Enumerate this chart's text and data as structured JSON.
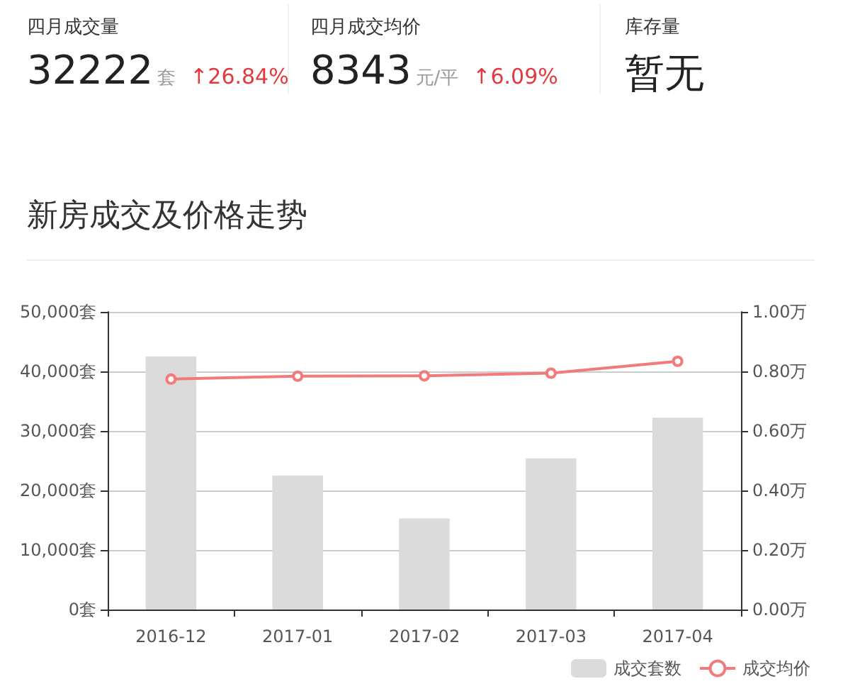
{
  "chart_data": [
    {
      "type": "other",
      "annotations": [
        "四月成交量",
        "32222",
        "套",
        "↑26.84%",
        "四月成交均价",
        "8343",
        "元/平",
        "↑6.09%",
        "库存量",
        "暂无"
      ]
    },
    {
      "type": "bar",
      "title": "新房成交及价格走势",
      "categories": [
        "2016-12",
        "2017-01",
        "2017-02",
        "2017-03",
        "2017-04"
      ],
      "series": [
        {
          "name": "成交套数",
          "type": "bar",
          "color": "#dbdbdb",
          "values": [
            42500,
            22500,
            15300,
            25400,
            32222
          ]
        },
        {
          "name": "成交均价",
          "type": "line",
          "axis": "y2",
          "color": "#f27a7a",
          "values": [
            0.774,
            0.784,
            0.785,
            0.794,
            0.834
          ]
        }
      ],
      "ylim": [
        0,
        50000
      ],
      "yticks": [
        {
          "value": 0,
          "label": "0套"
        },
        {
          "value": 10000,
          "label": "10,000套"
        },
        {
          "value": 20000,
          "label": "20,000套"
        },
        {
          "value": 30000,
          "label": "30,000套"
        },
        {
          "value": 40000,
          "label": "40,000套"
        },
        {
          "value": 50000,
          "label": "50,000套"
        }
      ],
      "y2lim": [
        0,
        1
      ],
      "y2ticks": [
        {
          "value": 0,
          "label": "0.00万"
        },
        {
          "value": 0.2,
          "label": "0.20万"
        },
        {
          "value": 0.4,
          "label": "0.40万"
        },
        {
          "value": 0.6,
          "label": "0.60万"
        },
        {
          "value": 0.8,
          "label": "0.80万"
        },
        {
          "value": 1,
          "label": "1.00万"
        }
      ],
      "grid": "y",
      "legend": "bottom right",
      "marker": "circle"
    }
  ]
}
